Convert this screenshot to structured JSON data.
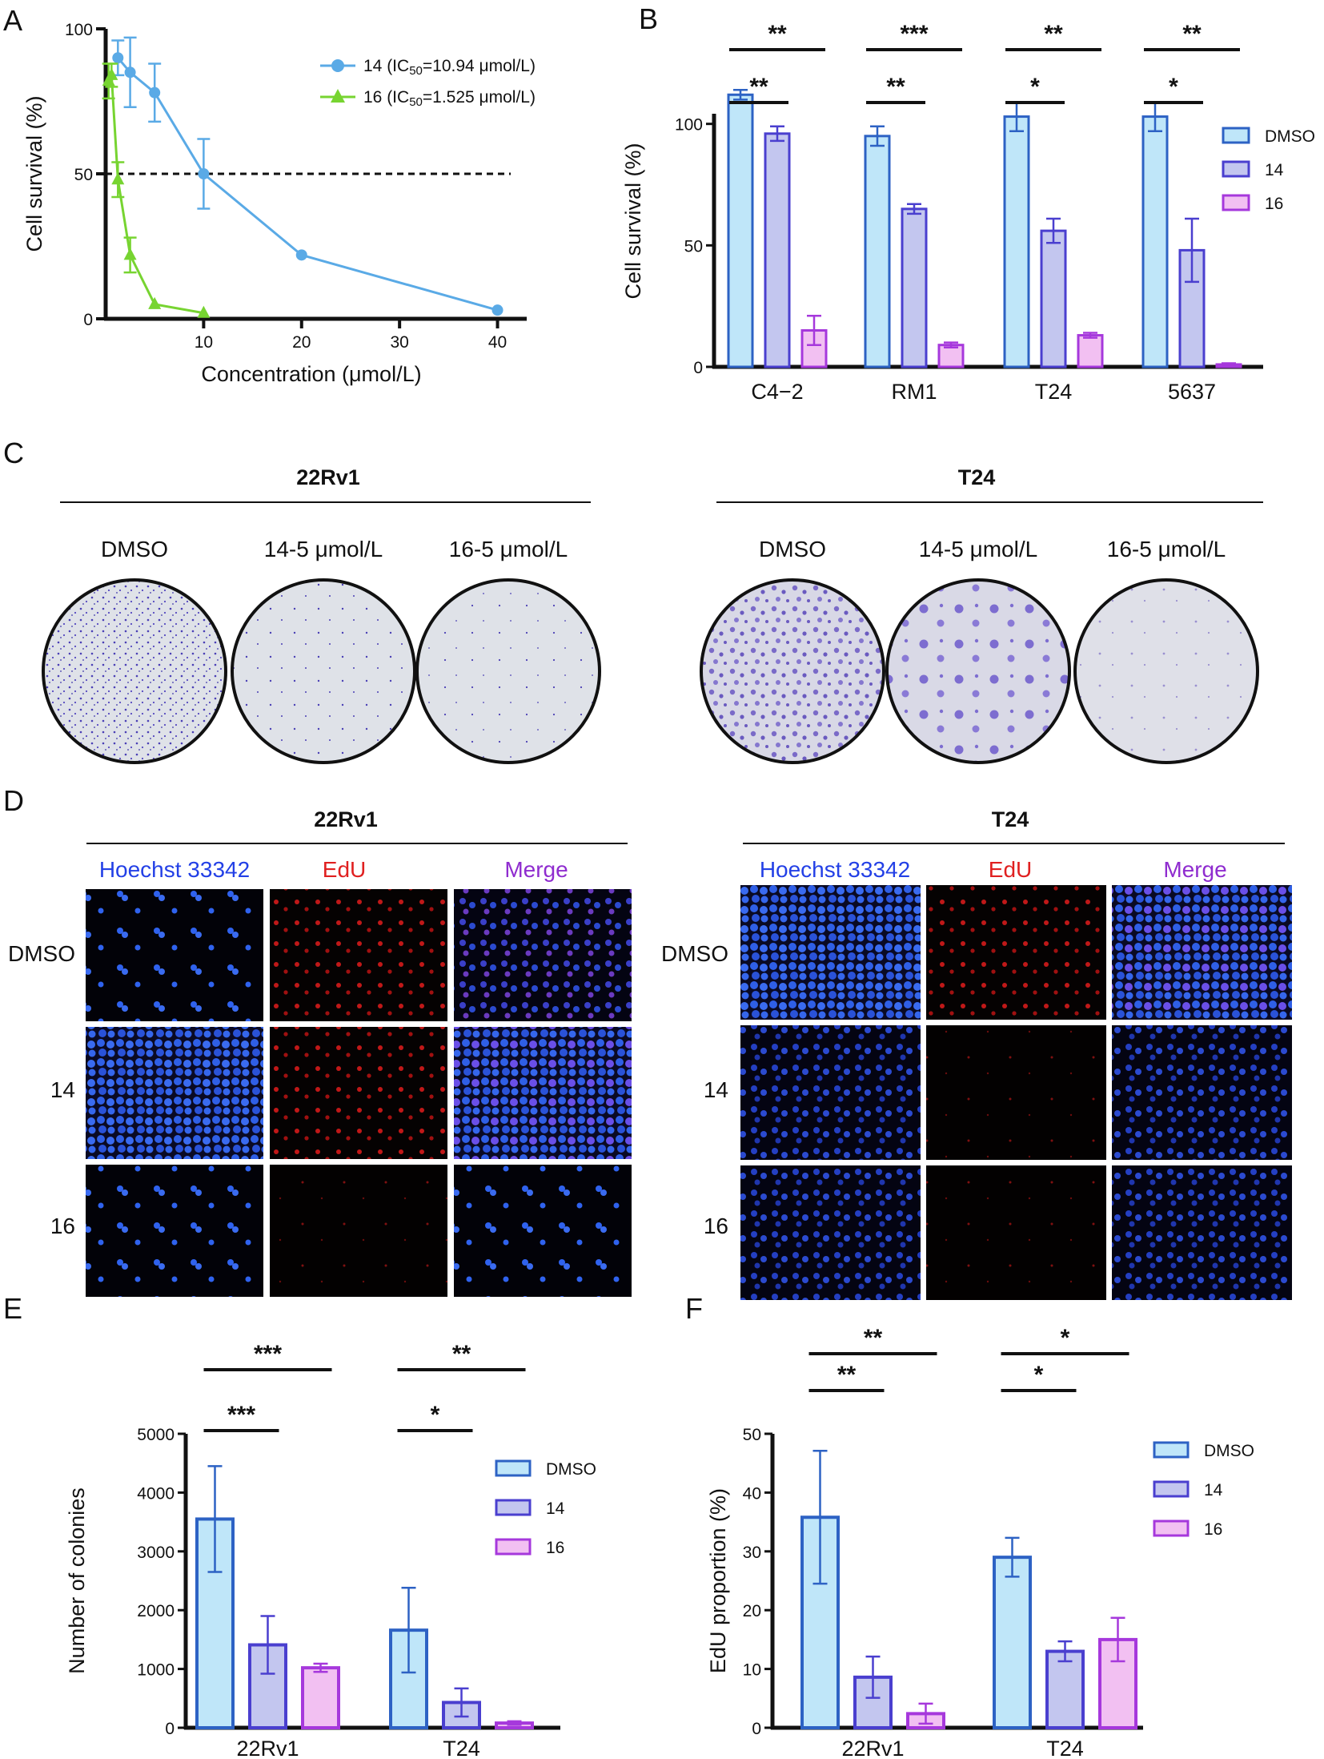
{
  "panels": {
    "A": "A",
    "B": "B",
    "C": "C",
    "D": "D",
    "E": "E",
    "F": "F"
  },
  "colors": {
    "s14": "#5aaae6",
    "s16": "#77d431",
    "dmso_fill": "#bfe6f9",
    "dmso_stroke": "#2d62c4",
    "c14_fill": "#c3c6ef",
    "c14_stroke": "#4a3fcf",
    "c16_fill": "#f2c0f2",
    "c16_stroke": "#a638dc",
    "hoechst": "#2340e6",
    "edu": "#e02020",
    "merge": "#8f2ccf"
  },
  "chart_data": [
    {
      "id": "A",
      "type": "line",
      "xlabel": "Concentration (μmol/L)",
      "ylabel": "Cell survival (%)",
      "xlim": [
        0,
        42
      ],
      "ylim": [
        0,
        100
      ],
      "xticks": [
        10,
        20,
        30,
        40
      ],
      "yticks": [
        0,
        50,
        100
      ],
      "ref_line": 50,
      "series": [
        {
          "name": "14 (IC50=10.94 μmol/L)",
          "legend_main": "14 (IC",
          "legend_sub": "50",
          "legend_rest": "=10.94 μmol/L)",
          "color": "#5aaae6",
          "marker": "circle",
          "x": [
            1.25,
            2.5,
            5,
            10,
            20,
            40
          ],
          "y": [
            90,
            85,
            78,
            50,
            22,
            3
          ],
          "err": [
            6,
            12,
            10,
            12,
            0,
            0
          ]
        },
        {
          "name": "16 (IC50=1.525 μmol/L)",
          "legend_main": "16 (IC",
          "legend_sub": "50",
          "legend_rest": "=1.525 μmol/L)",
          "color": "#77d431",
          "marker": "triangle",
          "x": [
            0.3,
            0.6,
            1.25,
            2.5,
            5,
            10
          ],
          "y": [
            82,
            84,
            48,
            22,
            5,
            2
          ],
          "err": [
            6,
            4,
            6,
            6,
            0,
            0
          ]
        }
      ]
    },
    {
      "id": "B",
      "type": "bar",
      "ylabel": "Cell survival (%)",
      "ylim": [
        0,
        120
      ],
      "yticks": [
        0,
        50,
        100
      ],
      "categories": [
        "C4−2",
        "RM1",
        "T24",
        "5637"
      ],
      "series": [
        {
          "name": "DMSO",
          "values": [
            112,
            95,
            103,
            103
          ],
          "err": [
            2,
            4,
            6,
            6
          ]
        },
        {
          "name": "14",
          "values": [
            96,
            65,
            56,
            48
          ],
          "err": [
            3,
            2,
            5,
            13
          ]
        },
        {
          "name": "16",
          "values": [
            15,
            9,
            13,
            1
          ],
          "err": [
            6,
            1,
            1,
            0.5
          ]
        }
      ],
      "significance": [
        {
          "category": 0,
          "short": "**",
          "long": "**"
        },
        {
          "category": 1,
          "short": "**",
          "long": "***"
        },
        {
          "category": 2,
          "short": "*",
          "long": "**"
        },
        {
          "category": 3,
          "short": "*",
          "long": "**"
        }
      ]
    },
    {
      "id": "E",
      "type": "bar",
      "ylabel": "Number of colonies",
      "ylim": [
        0,
        5000
      ],
      "yticks": [
        0,
        1000,
        2000,
        3000,
        4000,
        5000
      ],
      "categories": [
        "22Rv1",
        "T24"
      ],
      "series": [
        {
          "name": "DMSO",
          "values": [
            3550,
            1660
          ],
          "err": [
            900,
            720
          ]
        },
        {
          "name": "14",
          "values": [
            1410,
            430
          ],
          "err": [
            490,
            240
          ]
        },
        {
          "name": "16",
          "values": [
            1020,
            80
          ],
          "err": [
            70,
            30
          ]
        }
      ],
      "significance": [
        {
          "category": 0,
          "short": "***",
          "long": "***"
        },
        {
          "category": 1,
          "short": "*",
          "long": "**"
        }
      ]
    },
    {
      "id": "F",
      "type": "bar",
      "ylabel": "EdU proportion (%)",
      "ylim": [
        0,
        50
      ],
      "yticks": [
        0,
        10,
        20,
        30,
        40,
        50
      ],
      "categories": [
        "22Rv1",
        "T24"
      ],
      "series": [
        {
          "name": "DMSO",
          "values": [
            35.8,
            29.0
          ],
          "err": [
            11.3,
            3.3
          ]
        },
        {
          "name": "14",
          "values": [
            8.6,
            13.0
          ],
          "err": [
            3.5,
            1.7
          ]
        },
        {
          "name": "16",
          "values": [
            2.4,
            15.0
          ],
          "err": [
            1.7,
            3.7
          ]
        }
      ],
      "significance": [
        {
          "category": 0,
          "short": "**",
          "long": "**"
        },
        {
          "category": 1,
          "short": "*",
          "long": "*"
        }
      ]
    }
  ],
  "colony_assay": {
    "groups": [
      {
        "cell_line": "22Rv1",
        "conditions": [
          "DMSO",
          "14-5 μmol/L",
          "16-5 μmol/L"
        ],
        "density": [
          "dense small colonies",
          "sparse",
          "sparse"
        ]
      },
      {
        "cell_line": "T24",
        "conditions": [
          "DMSO",
          "14-5 μmol/L",
          "16-5 μmol/L"
        ],
        "density": [
          "dense large colonies",
          "medium large colonies",
          "very sparse"
        ]
      }
    ]
  },
  "edu_assay": {
    "channels": [
      "Hoechst 33342",
      "EdU",
      "Merge"
    ],
    "rows": [
      "DMSO",
      "14",
      "16"
    ],
    "groups": [
      "22Rv1",
      "T24"
    ]
  }
}
